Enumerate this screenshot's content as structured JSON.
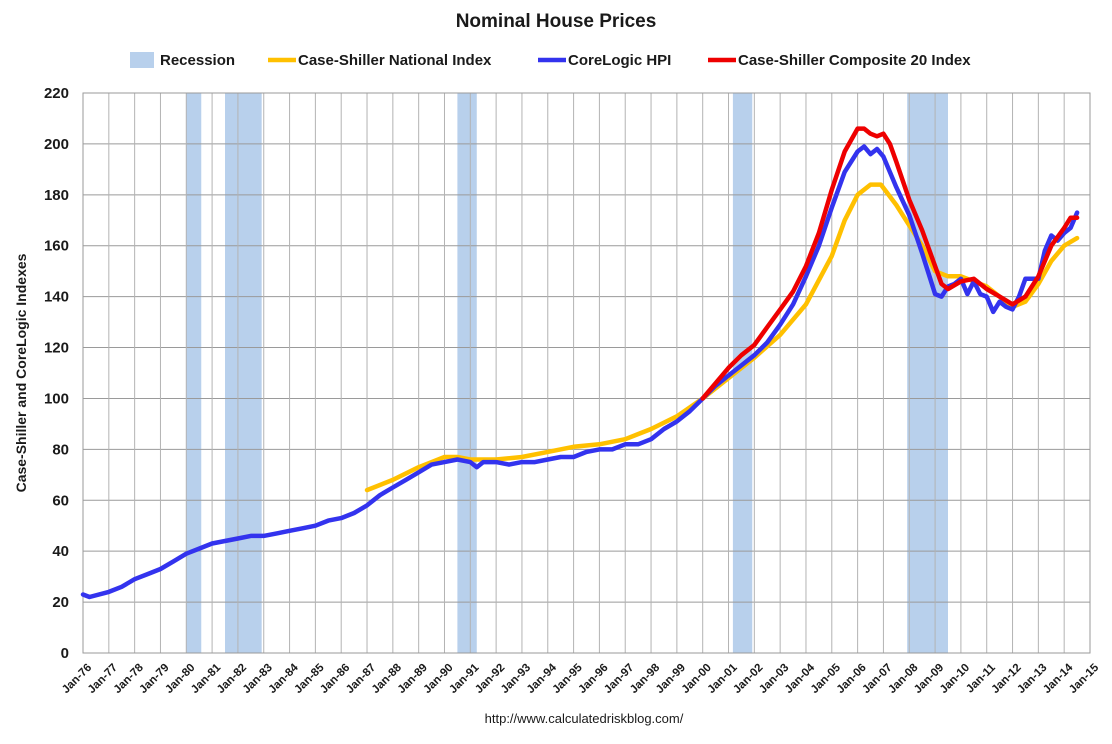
{
  "chart_data": {
    "type": "line",
    "title": "Nominal House Prices",
    "ylabel": "Case-Shiller and CoreLogic Indexes",
    "xlabel": "",
    "source": "http://www.calculatedriskblog.com/",
    "ylim": [
      0,
      220
    ],
    "yticks": [
      0,
      20,
      40,
      60,
      80,
      100,
      120,
      140,
      160,
      180,
      200,
      220
    ],
    "xlim": [
      1976.0,
      2015.0
    ],
    "xtick_labels": [
      "Jan-76",
      "Jan-77",
      "Jan-78",
      "Jan-79",
      "Jan-80",
      "Jan-81",
      "Jan-82",
      "Jan-83",
      "Jan-84",
      "Jan-85",
      "Jan-86",
      "Jan-87",
      "Jan-88",
      "Jan-89",
      "Jan-90",
      "Jan-91",
      "Jan-92",
      "Jan-93",
      "Jan-94",
      "Jan-95",
      "Jan-96",
      "Jan-97",
      "Jan-98",
      "Jan-99",
      "Jan-00",
      "Jan-01",
      "Jan-02",
      "Jan-03",
      "Jan-04",
      "Jan-05",
      "Jan-06",
      "Jan-07",
      "Jan-08",
      "Jan-09",
      "Jan-10",
      "Jan-11",
      "Jan-12",
      "Jan-13",
      "Jan-14",
      "Jan-15"
    ],
    "grid": true,
    "legend_position": "top",
    "recessions": [
      {
        "start": 1980.0,
        "end": 1980.58
      },
      {
        "start": 1981.5,
        "end": 1982.92
      },
      {
        "start": 1990.5,
        "end": 1991.25
      },
      {
        "start": 2001.17,
        "end": 2001.92
      },
      {
        "start": 2007.92,
        "end": 2009.5
      }
    ],
    "legend": [
      {
        "label": "Recession",
        "color": "#b8d0ec",
        "kind": "box"
      },
      {
        "label": "Case-Shiller National Index",
        "color": "#ffc000",
        "kind": "line"
      },
      {
        "label": "CoreLogic HPI",
        "color": "#3333ee",
        "kind": "line"
      },
      {
        "label": "Case-Shiller Composite 20 Index",
        "color": "#ee0000",
        "kind": "line"
      }
    ],
    "series": [
      {
        "name": "Case-Shiller National Index",
        "color": "#ffc000",
        "x": [
          1987.0,
          1988.0,
          1989.0,
          1990.0,
          1990.5,
          1991.0,
          1992.0,
          1993.0,
          1994.0,
          1995.0,
          1996.0,
          1997.0,
          1998.0,
          1999.0,
          2000.0,
          2001.0,
          2002.0,
          2003.0,
          2004.0,
          2005.0,
          2005.5,
          2006.0,
          2006.5,
          2006.9,
          2007.5,
          2008.0,
          2008.5,
          2009.0,
          2009.5,
          2010.0,
          2010.5,
          2011.0,
          2011.5,
          2012.0,
          2012.5,
          2013.0,
          2013.5,
          2014.0,
          2014.5
        ],
        "y": [
          64,
          68,
          73,
          77,
          77,
          76,
          76,
          77,
          79,
          81,
          82,
          84,
          88,
          93,
          100,
          108,
          116,
          125,
          137,
          156,
          170,
          180,
          184,
          184,
          176,
          168,
          160,
          150,
          148,
          148,
          146,
          144,
          140,
          136,
          138,
          145,
          154,
          160,
          163
        ]
      },
      {
        "name": "CoreLogic HPI",
        "color": "#3333ee",
        "x": [
          1976.0,
          1976.25,
          1977.0,
          1977.5,
          1978.0,
          1978.5,
          1979.0,
          1979.5,
          1980.0,
          1980.5,
          1981.0,
          1981.5,
          1982.0,
          1982.5,
          1983.0,
          1983.5,
          1984.0,
          1984.5,
          1985.0,
          1985.5,
          1986.0,
          1986.5,
          1987.0,
          1987.5,
          1988.0,
          1988.5,
          1989.0,
          1989.5,
          1990.0,
          1990.5,
          1991.0,
          1991.25,
          1991.5,
          1992.0,
          1992.5,
          1993.0,
          1993.5,
          1994.0,
          1994.5,
          1995.0,
          1995.5,
          1996.0,
          1996.5,
          1997.0,
          1997.5,
          1998.0,
          1998.5,
          1999.0,
          1999.5,
          2000.0,
          2000.5,
          2001.0,
          2001.5,
          2002.0,
          2002.5,
          2003.0,
          2003.5,
          2004.0,
          2004.5,
          2005.0,
          2005.5,
          2006.0,
          2006.25,
          2006.5,
          2006.75,
          2007.0,
          2007.5,
          2008.0,
          2008.5,
          2009.0,
          2009.25,
          2009.5,
          2009.75,
          2010.0,
          2010.25,
          2010.5,
          2010.75,
          2011.0,
          2011.25,
          2011.5,
          2011.75,
          2012.0,
          2012.25,
          2012.5,
          2012.75,
          2013.0,
          2013.25,
          2013.5,
          2013.75,
          2014.0,
          2014.25,
          2014.5
        ],
        "y": [
          23,
          22,
          24,
          26,
          29,
          31,
          33,
          36,
          39,
          41,
          43,
          44,
          45,
          46,
          46,
          47,
          48,
          49,
          50,
          52,
          53,
          55,
          58,
          62,
          65,
          68,
          71,
          74,
          75,
          76,
          75,
          73,
          75,
          75,
          74,
          75,
          75,
          76,
          77,
          77,
          79,
          80,
          80,
          82,
          82,
          84,
          88,
          91,
          95,
          100,
          105,
          109,
          113,
          117,
          122,
          129,
          137,
          148,
          160,
          175,
          189,
          197,
          199,
          196,
          198,
          195,
          183,
          172,
          157,
          141,
          140,
          144,
          145,
          147,
          141,
          146,
          141,
          140,
          134,
          138,
          136,
          135,
          140,
          147,
          147,
          147,
          158,
          164,
          162,
          165,
          167,
          173
        ]
      },
      {
        "name": "Case-Shiller Composite 20 Index",
        "color": "#ee0000",
        "x": [
          2000.0,
          2000.5,
          2001.0,
          2001.5,
          2002.0,
          2002.5,
          2003.0,
          2003.5,
          2004.0,
          2004.5,
          2005.0,
          2005.5,
          2006.0,
          2006.25,
          2006.5,
          2006.75,
          2007.0,
          2007.25,
          2007.5,
          2008.0,
          2008.5,
          2009.0,
          2009.25,
          2009.5,
          2010.0,
          2010.5,
          2011.0,
          2011.5,
          2012.0,
          2012.5,
          2013.0,
          2013.5,
          2014.0,
          2014.25,
          2014.5
        ],
        "y": [
          100,
          106,
          112,
          117,
          121,
          128,
          135,
          142,
          152,
          165,
          182,
          197,
          206,
          206,
          204,
          203,
          204,
          200,
          193,
          178,
          166,
          152,
          145,
          143,
          146,
          147,
          143,
          140,
          137,
          140,
          148,
          160,
          167,
          171,
          171
        ]
      }
    ]
  }
}
